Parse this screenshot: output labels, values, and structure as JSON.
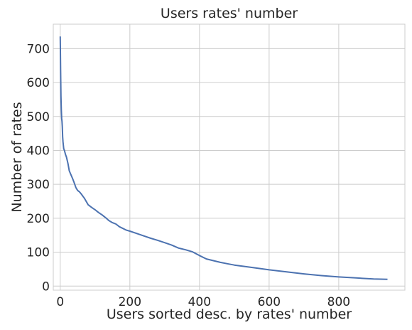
{
  "chart_data": {
    "type": "line",
    "title": "Users rates' number",
    "xlabel": "Users sorted desc. by rates' number",
    "ylabel": "Number of rates",
    "xlim": [
      -20,
      990
    ],
    "ylim": [
      -12,
      772
    ],
    "xticks": [
      0,
      200,
      400,
      600,
      800
    ],
    "yticks": [
      0,
      100,
      200,
      300,
      400,
      500,
      600,
      700
    ],
    "grid": true,
    "legend": "none",
    "color": "#4c72b0",
    "series": [
      {
        "x": [
          0,
          1,
          2,
          3,
          4,
          5,
          6,
          7,
          8,
          10,
          12,
          15,
          18,
          22,
          26,
          30,
          35,
          40,
          45,
          50,
          55,
          60,
          70,
          80,
          90,
          100,
          110,
          120,
          130,
          140,
          150,
          160,
          170,
          180,
          190,
          200,
          220,
          240,
          260,
          280,
          300,
          320,
          340,
          360,
          380,
          400,
          420,
          440,
          460,
          480,
          500,
          550,
          600,
          650,
          700,
          750,
          800,
          850,
          900,
          940
        ],
        "y": [
          736,
          640,
          560,
          520,
          495,
          485,
          470,
          440,
          425,
          405,
          400,
          388,
          380,
          362,
          340,
          330,
          318,
          305,
          290,
          282,
          278,
          272,
          258,
          240,
          232,
          225,
          217,
          210,
          202,
          193,
          187,
          183,
          175,
          170,
          165,
          162,
          155,
          148,
          141,
          135,
          128,
          121,
          112,
          107,
          101,
          90,
          80,
          75,
          70,
          66,
          62,
          55,
          48,
          42,
          36,
          31,
          27,
          24,
          21,
          20
        ]
      }
    ]
  }
}
